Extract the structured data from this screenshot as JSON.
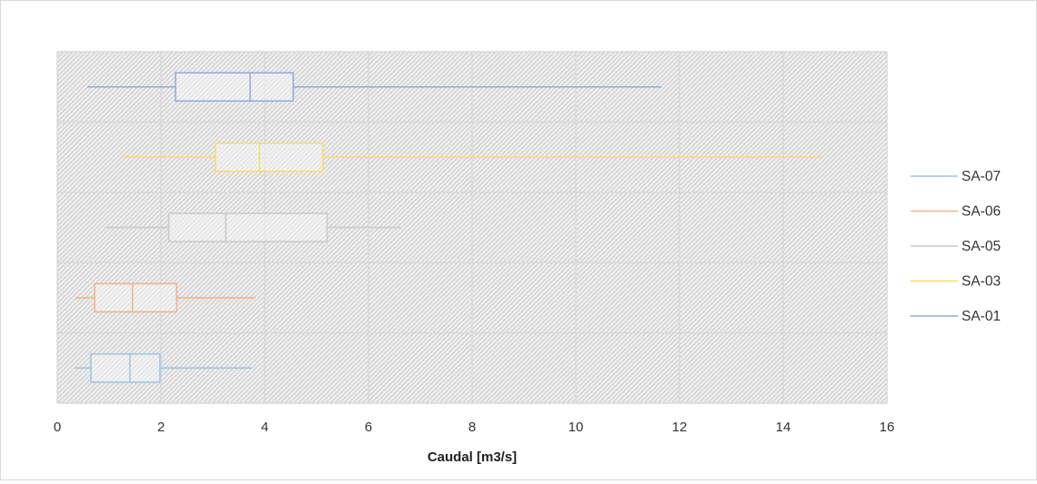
{
  "chart_data": {
    "type": "boxplot",
    "orientation": "horizontal",
    "xlabel": "Caudal [m3/s]",
    "xlim": [
      0,
      16
    ],
    "x_ticks": [
      0,
      2,
      4,
      6,
      8,
      10,
      12,
      14,
      16
    ],
    "grid": true,
    "plot_background": "hatched light gray",
    "legend_position": "right",
    "legend": [
      "SA-07",
      "SA-06",
      "SA-05",
      "SA-03",
      "SA-01"
    ],
    "series": [
      {
        "name": "SA-07",
        "color": "#9dc3e6",
        "min": 0.35,
        "q1": 0.65,
        "median": 1.4,
        "q3": 1.98,
        "max": 3.75
      },
      {
        "name": "SA-06",
        "color": "#f4b183",
        "min": 0.35,
        "q1": 0.72,
        "median": 1.45,
        "q3": 2.3,
        "max": 3.82
      },
      {
        "name": "SA-05",
        "color": "#c9c9c9",
        "min": 0.92,
        "q1": 2.15,
        "median": 3.25,
        "q3": 5.2,
        "max": 6.62
      },
      {
        "name": "SA-03",
        "color": "#ffd966",
        "min": 1.28,
        "q1": 3.05,
        "median": 3.9,
        "q3": 5.12,
        "max": 14.72
      },
      {
        "name": "SA-01",
        "color": "#8faadc",
        "min": 0.58,
        "q1": 2.28,
        "median": 3.72,
        "q3": 4.55,
        "max": 11.65
      }
    ]
  }
}
